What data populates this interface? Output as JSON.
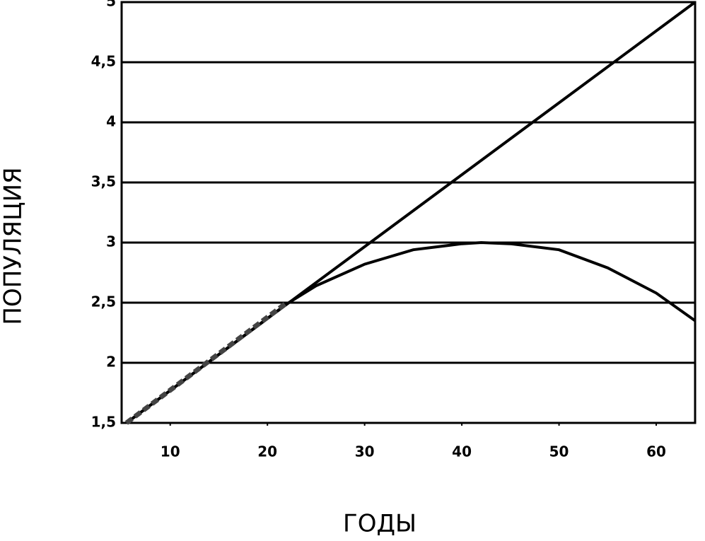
{
  "chart_data": {
    "type": "line",
    "xlabel": "ГОДЫ",
    "ylabel": "ПОПУЛЯЦИЯ",
    "xlim": [
      5,
      64
    ],
    "xticks": [
      10,
      20,
      30,
      40,
      50,
      60
    ],
    "ylim": [
      1.5,
      5
    ],
    "yticks": [
      {
        "value": 1.5,
        "label": "1,5"
      },
      2,
      {
        "value": 2.5,
        "label": "2,5"
      },
      3,
      {
        "value": 3.5,
        "label": "3,5"
      },
      4,
      {
        "value": 4.5,
        "label": "4,5"
      },
      5
    ],
    "grid": true,
    "series": [
      {
        "color": "#000000",
        "dashed": false,
        "x": [
          5.5,
          64
        ],
        "values": [
          1.5,
          5
        ]
      },
      {
        "color": "#000000",
        "dashed": false,
        "x": [
          5.5,
          10,
          15,
          22,
          25,
          30,
          35,
          40,
          42,
          45,
          50,
          55,
          60,
          64
        ],
        "values": [
          1.5,
          1.77,
          2.07,
          2.49,
          2.64,
          2.82,
          2.94,
          2.99,
          3.0,
          2.99,
          2.94,
          2.79,
          2.58,
          2.35
        ]
      },
      {
        "color": "#444444",
        "dashed": true,
        "x": [
          5.5,
          22
        ],
        "values": [
          1.5,
          2.5
        ]
      }
    ]
  }
}
